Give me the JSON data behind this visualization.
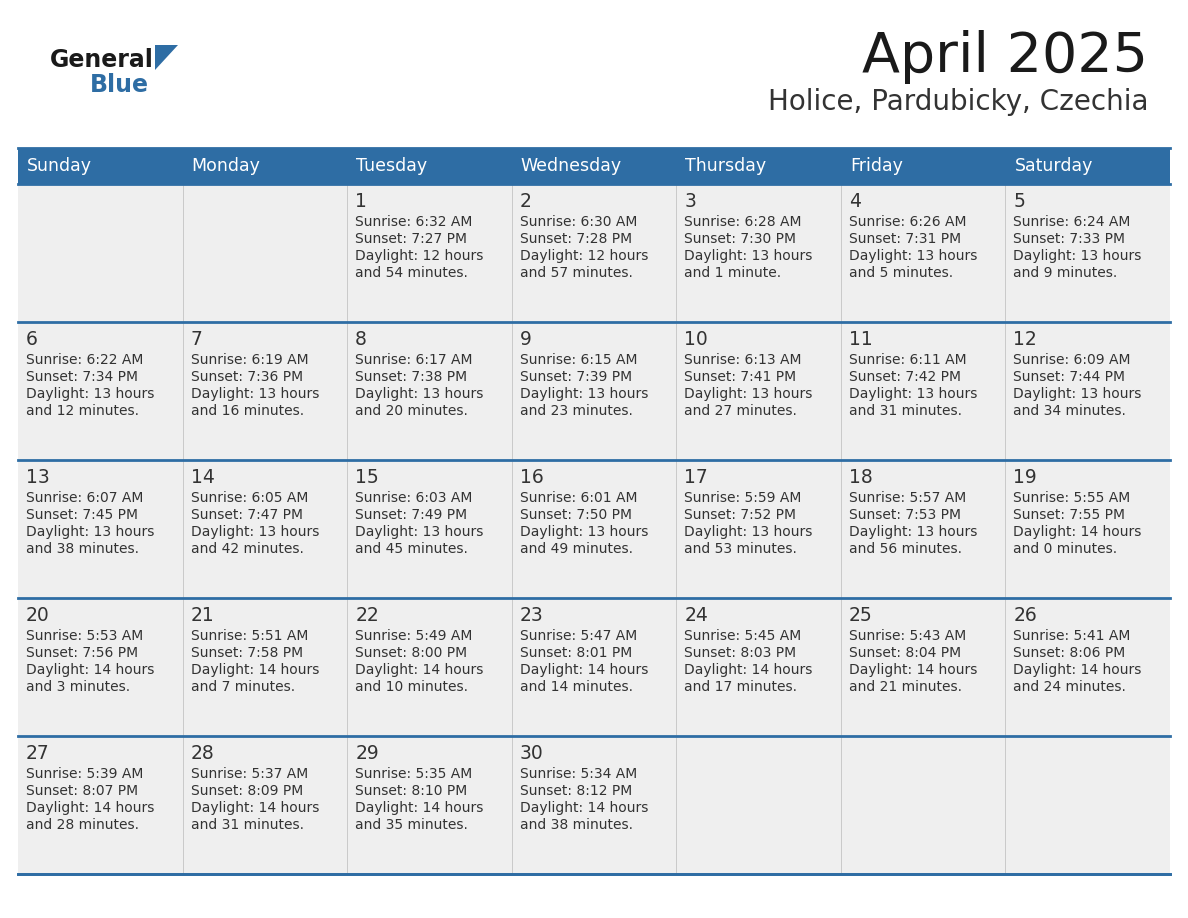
{
  "title": "April 2025",
  "subtitle": "Holice, Pardubicky, Czechia",
  "header_bg": "#2E6DA4",
  "header_text_color": "#FFFFFF",
  "cell_bg": "#EFEFEF",
  "border_color": "#2E6DA4",
  "text_color": "#333333",
  "day_headers": [
    "Sunday",
    "Monday",
    "Tuesday",
    "Wednesday",
    "Thursday",
    "Friday",
    "Saturday"
  ],
  "weeks": [
    [
      {
        "day": "",
        "info": ""
      },
      {
        "day": "",
        "info": ""
      },
      {
        "day": "1",
        "info": "Sunrise: 6:32 AM\nSunset: 7:27 PM\nDaylight: 12 hours\nand 54 minutes."
      },
      {
        "day": "2",
        "info": "Sunrise: 6:30 AM\nSunset: 7:28 PM\nDaylight: 12 hours\nand 57 minutes."
      },
      {
        "day": "3",
        "info": "Sunrise: 6:28 AM\nSunset: 7:30 PM\nDaylight: 13 hours\nand 1 minute."
      },
      {
        "day": "4",
        "info": "Sunrise: 6:26 AM\nSunset: 7:31 PM\nDaylight: 13 hours\nand 5 minutes."
      },
      {
        "day": "5",
        "info": "Sunrise: 6:24 AM\nSunset: 7:33 PM\nDaylight: 13 hours\nand 9 minutes."
      }
    ],
    [
      {
        "day": "6",
        "info": "Sunrise: 6:22 AM\nSunset: 7:34 PM\nDaylight: 13 hours\nand 12 minutes."
      },
      {
        "day": "7",
        "info": "Sunrise: 6:19 AM\nSunset: 7:36 PM\nDaylight: 13 hours\nand 16 minutes."
      },
      {
        "day": "8",
        "info": "Sunrise: 6:17 AM\nSunset: 7:38 PM\nDaylight: 13 hours\nand 20 minutes."
      },
      {
        "day": "9",
        "info": "Sunrise: 6:15 AM\nSunset: 7:39 PM\nDaylight: 13 hours\nand 23 minutes."
      },
      {
        "day": "10",
        "info": "Sunrise: 6:13 AM\nSunset: 7:41 PM\nDaylight: 13 hours\nand 27 minutes."
      },
      {
        "day": "11",
        "info": "Sunrise: 6:11 AM\nSunset: 7:42 PM\nDaylight: 13 hours\nand 31 minutes."
      },
      {
        "day": "12",
        "info": "Sunrise: 6:09 AM\nSunset: 7:44 PM\nDaylight: 13 hours\nand 34 minutes."
      }
    ],
    [
      {
        "day": "13",
        "info": "Sunrise: 6:07 AM\nSunset: 7:45 PM\nDaylight: 13 hours\nand 38 minutes."
      },
      {
        "day": "14",
        "info": "Sunrise: 6:05 AM\nSunset: 7:47 PM\nDaylight: 13 hours\nand 42 minutes."
      },
      {
        "day": "15",
        "info": "Sunrise: 6:03 AM\nSunset: 7:49 PM\nDaylight: 13 hours\nand 45 minutes."
      },
      {
        "day": "16",
        "info": "Sunrise: 6:01 AM\nSunset: 7:50 PM\nDaylight: 13 hours\nand 49 minutes."
      },
      {
        "day": "17",
        "info": "Sunrise: 5:59 AM\nSunset: 7:52 PM\nDaylight: 13 hours\nand 53 minutes."
      },
      {
        "day": "18",
        "info": "Sunrise: 5:57 AM\nSunset: 7:53 PM\nDaylight: 13 hours\nand 56 minutes."
      },
      {
        "day": "19",
        "info": "Sunrise: 5:55 AM\nSunset: 7:55 PM\nDaylight: 14 hours\nand 0 minutes."
      }
    ],
    [
      {
        "day": "20",
        "info": "Sunrise: 5:53 AM\nSunset: 7:56 PM\nDaylight: 14 hours\nand 3 minutes."
      },
      {
        "day": "21",
        "info": "Sunrise: 5:51 AM\nSunset: 7:58 PM\nDaylight: 14 hours\nand 7 minutes."
      },
      {
        "day": "22",
        "info": "Sunrise: 5:49 AM\nSunset: 8:00 PM\nDaylight: 14 hours\nand 10 minutes."
      },
      {
        "day": "23",
        "info": "Sunrise: 5:47 AM\nSunset: 8:01 PM\nDaylight: 14 hours\nand 14 minutes."
      },
      {
        "day": "24",
        "info": "Sunrise: 5:45 AM\nSunset: 8:03 PM\nDaylight: 14 hours\nand 17 minutes."
      },
      {
        "day": "25",
        "info": "Sunrise: 5:43 AM\nSunset: 8:04 PM\nDaylight: 14 hours\nand 21 minutes."
      },
      {
        "day": "26",
        "info": "Sunrise: 5:41 AM\nSunset: 8:06 PM\nDaylight: 14 hours\nand 24 minutes."
      }
    ],
    [
      {
        "day": "27",
        "info": "Sunrise: 5:39 AM\nSunset: 8:07 PM\nDaylight: 14 hours\nand 28 minutes."
      },
      {
        "day": "28",
        "info": "Sunrise: 5:37 AM\nSunset: 8:09 PM\nDaylight: 14 hours\nand 31 minutes."
      },
      {
        "day": "29",
        "info": "Sunrise: 5:35 AM\nSunset: 8:10 PM\nDaylight: 14 hours\nand 35 minutes."
      },
      {
        "day": "30",
        "info": "Sunrise: 5:34 AM\nSunset: 8:12 PM\nDaylight: 14 hours\nand 38 minutes."
      },
      {
        "day": "",
        "info": ""
      },
      {
        "day": "",
        "info": ""
      },
      {
        "day": "",
        "info": ""
      }
    ]
  ],
  "logo_general_color": "#1a1a1a",
  "logo_blue_color": "#2E6DA4",
  "figsize": [
    11.88,
    9.18
  ],
  "dpi": 100
}
